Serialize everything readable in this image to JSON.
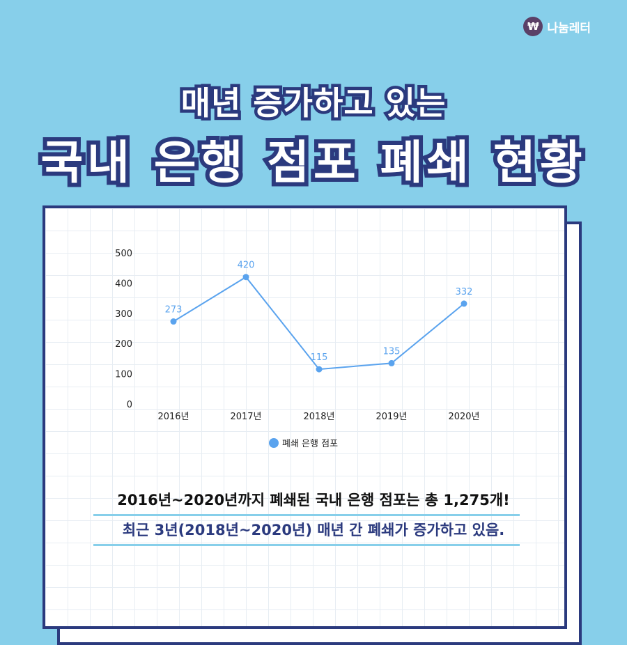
{
  "brand": {
    "logo_symbol": "₩",
    "name": "나눔레터"
  },
  "title": {
    "line1": "매년 증가하고 있는",
    "line2": "국내 은행 점포 폐쇄 현황"
  },
  "chart_data": {
    "type": "line",
    "categories": [
      "2016년",
      "2017년",
      "2018년",
      "2019년",
      "2020년"
    ],
    "series": [
      {
        "name": "폐쇄 은행 점포",
        "values": [
          273,
          420,
          115,
          135,
          332
        ]
      }
    ],
    "yticks": [
      "0",
      "100",
      "200",
      "300",
      "400",
      "500"
    ],
    "ylim": [
      0,
      500
    ],
    "legend": "bottom-center",
    "color": "#5aa3ee"
  },
  "summary": {
    "line1": "2016년~2020년까지 폐쇄된 국내 은행 점포는 총 1,275개!",
    "line2": "최근 3년(2018년~2020년) 매년 간 폐쇄가 증가하고 있음."
  }
}
